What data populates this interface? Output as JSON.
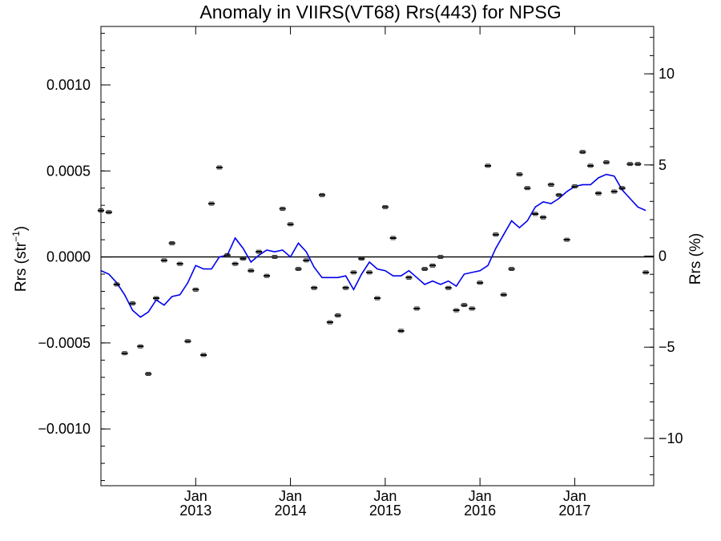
{
  "chart_data": {
    "type": "scatter",
    "title": "Anomaly in VIIRS(VT68) Rrs(443) for NPSG",
    "ylabel_left": "Rrs (str",
    "ylabel_left_sup": "−1",
    "ylabel_left_close": ")",
    "ylabel_right": "Rrs (%)",
    "x_start_date": "2012-01",
    "x_end_date": "2017-11",
    "ylim_left": [
      -0.00133,
      0.00134
    ],
    "ylim_right": [
      -12.6,
      12.6
    ],
    "x_ticks": [
      {
        "date": "2013-01",
        "month": "Jan",
        "year": "2013"
      },
      {
        "date": "2014-01",
        "month": "Jan",
        "year": "2014"
      },
      {
        "date": "2015-01",
        "month": "Jan",
        "year": "2015"
      },
      {
        "date": "2016-01",
        "month": "Jan",
        "year": "2016"
      },
      {
        "date": "2017-01",
        "month": "Jan",
        "year": "2017"
      }
    ],
    "y_ticks_left": [
      {
        "value": 0.001,
        "label": "0.0010"
      },
      {
        "value": 0.0005,
        "label": "0.0005"
      },
      {
        "value": 0.0,
        "label": "0.0000"
      },
      {
        "value": -0.0005,
        "label": "−0.0005"
      },
      {
        "value": -0.001,
        "label": "−0.0010"
      }
    ],
    "y_ticks_right": [
      {
        "value": 10,
        "label": "10"
      },
      {
        "value": 5,
        "label": "5"
      },
      {
        "value": 0,
        "label": "0"
      },
      {
        "value": -5,
        "label": "−5"
      },
      {
        "value": -10,
        "label": "−10"
      }
    ],
    "zero_line": 0.0,
    "grid": false,
    "series": [
      {
        "color": "#000000",
        "style": "points-with-errorbars",
        "points": [
          {
            "x": "2012-01",
            "y": 0.00027
          },
          {
            "x": "2012-02",
            "y": 0.00026
          },
          {
            "x": "2012-03",
            "y": -0.00016
          },
          {
            "x": "2012-04",
            "y": -0.00056
          },
          {
            "x": "2012-05",
            "y": -0.00027
          },
          {
            "x": "2012-06",
            "y": -0.00052
          },
          {
            "x": "2012-07",
            "y": -0.00068
          },
          {
            "x": "2012-08",
            "y": -0.00024
          },
          {
            "x": "2012-09",
            "y": -2e-05
          },
          {
            "x": "2012-10",
            "y": 8e-05
          },
          {
            "x": "2012-11",
            "y": -4e-05
          },
          {
            "x": "2012-12",
            "y": -0.00049
          },
          {
            "x": "2013-01",
            "y": -0.00019
          },
          {
            "x": "2013-02",
            "y": -0.00057
          },
          {
            "x": "2013-03",
            "y": 0.00031
          },
          {
            "x": "2013-04",
            "y": 0.00052
          },
          {
            "x": "2013-05",
            "y": 1e-05
          },
          {
            "x": "2013-06",
            "y": -4e-05
          },
          {
            "x": "2013-07",
            "y": -1e-05
          },
          {
            "x": "2013-08",
            "y": -8e-05
          },
          {
            "x": "2013-09",
            "y": 3e-05
          },
          {
            "x": "2013-10",
            "y": -0.00011
          },
          {
            "x": "2013-11",
            "y": 0.0
          },
          {
            "x": "2013-12",
            "y": 0.00028
          },
          {
            "x": "2014-01",
            "y": 0.00019
          },
          {
            "x": "2014-02",
            "y": -7e-05
          },
          {
            "x": "2014-03",
            "y": -2e-05
          },
          {
            "x": "2014-04",
            "y": -0.00018
          },
          {
            "x": "2014-05",
            "y": 0.00036
          },
          {
            "x": "2014-06",
            "y": -0.00038
          },
          {
            "x": "2014-07",
            "y": -0.00034
          },
          {
            "x": "2014-08",
            "y": -0.00018
          },
          {
            "x": "2014-09",
            "y": -9e-05
          },
          {
            "x": "2014-10",
            "y": -1e-05
          },
          {
            "x": "2014-11",
            "y": -9e-05
          },
          {
            "x": "2014-12",
            "y": -0.00024
          },
          {
            "x": "2015-01",
            "y": 0.00029
          },
          {
            "x": "2015-02",
            "y": 0.00011
          },
          {
            "x": "2015-03",
            "y": -0.00043
          },
          {
            "x": "2015-04",
            "y": -0.00012
          },
          {
            "x": "2015-05",
            "y": -0.0003
          },
          {
            "x": "2015-06",
            "y": -7e-05
          },
          {
            "x": "2015-07",
            "y": -5e-05
          },
          {
            "x": "2015-08",
            "y": 0.0
          },
          {
            "x": "2015-09",
            "y": -0.00018
          },
          {
            "x": "2015-10",
            "y": -0.00031
          },
          {
            "x": "2015-11",
            "y": -0.00028
          },
          {
            "x": "2015-12",
            "y": -0.0003
          },
          {
            "x": "2016-01",
            "y": -0.00015
          },
          {
            "x": "2016-02",
            "y": 0.00053
          },
          {
            "x": "2016-03",
            "y": 0.00013
          },
          {
            "x": "2016-04",
            "y": -0.00022
          },
          {
            "x": "2016-05",
            "y": -7e-05
          },
          {
            "x": "2016-06",
            "y": 0.00048
          },
          {
            "x": "2016-07",
            "y": 0.0004
          },
          {
            "x": "2016-08",
            "y": 0.00025
          },
          {
            "x": "2016-09",
            "y": 0.00023
          },
          {
            "x": "2016-10",
            "y": 0.00042
          },
          {
            "x": "2016-11",
            "y": 0.00036
          },
          {
            "x": "2016-12",
            "y": 0.0001
          },
          {
            "x": "2017-01",
            "y": 0.00041
          },
          {
            "x": "2017-02",
            "y": 0.00061
          },
          {
            "x": "2017-03",
            "y": 0.00053
          },
          {
            "x": "2017-04",
            "y": 0.00037
          },
          {
            "x": "2017-05",
            "y": 0.00055
          },
          {
            "x": "2017-06",
            "y": 0.00038
          },
          {
            "x": "2017-07",
            "y": 0.0004
          },
          {
            "x": "2017-08",
            "y": 0.00054
          },
          {
            "x": "2017-09",
            "y": 0.00054
          },
          {
            "x": "2017-10",
            "y": -9e-05
          }
        ]
      },
      {
        "color": "#0000ee",
        "style": "line",
        "points": [
          {
            "x": "2012-01",
            "y": -8e-05
          },
          {
            "x": "2012-02",
            "y": -0.0001
          },
          {
            "x": "2012-03",
            "y": -0.00015
          },
          {
            "x": "2012-04",
            "y": -0.00022
          },
          {
            "x": "2012-05",
            "y": -0.00031
          },
          {
            "x": "2012-06",
            "y": -0.00035
          },
          {
            "x": "2012-07",
            "y": -0.00032
          },
          {
            "x": "2012-08",
            "y": -0.00025
          },
          {
            "x": "2012-09",
            "y": -0.00028
          },
          {
            "x": "2012-10",
            "y": -0.00023
          },
          {
            "x": "2012-11",
            "y": -0.00022
          },
          {
            "x": "2012-12",
            "y": -0.00015
          },
          {
            "x": "2013-01",
            "y": -5e-05
          },
          {
            "x": "2013-02",
            "y": -7e-05
          },
          {
            "x": "2013-03",
            "y": -7e-05
          },
          {
            "x": "2013-04",
            "y": 0.0
          },
          {
            "x": "2013-05",
            "y": 1e-05
          },
          {
            "x": "2013-06",
            "y": 0.00011
          },
          {
            "x": "2013-07",
            "y": 5e-05
          },
          {
            "x": "2013-08",
            "y": -3e-05
          },
          {
            "x": "2013-09",
            "y": 1e-05
          },
          {
            "x": "2013-10",
            "y": 4e-05
          },
          {
            "x": "2013-11",
            "y": 3e-05
          },
          {
            "x": "2013-12",
            "y": 4e-05
          },
          {
            "x": "2014-01",
            "y": 0.0
          },
          {
            "x": "2014-02",
            "y": 8e-05
          },
          {
            "x": "2014-03",
            "y": 3e-05
          },
          {
            "x": "2014-04",
            "y": -6e-05
          },
          {
            "x": "2014-05",
            "y": -0.00012
          },
          {
            "x": "2014-06",
            "y": -0.00012
          },
          {
            "x": "2014-07",
            "y": -0.00012
          },
          {
            "x": "2014-08",
            "y": -0.00011
          },
          {
            "x": "2014-09",
            "y": -0.00019
          },
          {
            "x": "2014-10",
            "y": -0.0001
          },
          {
            "x": "2014-11",
            "y": -3e-05
          },
          {
            "x": "2014-12",
            "y": -7e-05
          },
          {
            "x": "2015-01",
            "y": -8e-05
          },
          {
            "x": "2015-02",
            "y": -0.00011
          },
          {
            "x": "2015-03",
            "y": -0.00011
          },
          {
            "x": "2015-04",
            "y": -8e-05
          },
          {
            "x": "2015-05",
            "y": -0.00012
          },
          {
            "x": "2015-06",
            "y": -0.00016
          },
          {
            "x": "2015-07",
            "y": -0.00014
          },
          {
            "x": "2015-08",
            "y": -0.00016
          },
          {
            "x": "2015-09",
            "y": -0.00014
          },
          {
            "x": "2015-10",
            "y": -0.00017
          },
          {
            "x": "2015-11",
            "y": -0.0001
          },
          {
            "x": "2015-12",
            "y": -9e-05
          },
          {
            "x": "2016-01",
            "y": -8e-05
          },
          {
            "x": "2016-02",
            "y": -5e-05
          },
          {
            "x": "2016-03",
            "y": 5e-05
          },
          {
            "x": "2016-04",
            "y": 0.00013
          },
          {
            "x": "2016-05",
            "y": 0.00021
          },
          {
            "x": "2016-06",
            "y": 0.00017
          },
          {
            "x": "2016-07",
            "y": 0.00021
          },
          {
            "x": "2016-08",
            "y": 0.00029
          },
          {
            "x": "2016-09",
            "y": 0.00032
          },
          {
            "x": "2016-10",
            "y": 0.00031
          },
          {
            "x": "2016-11",
            "y": 0.00034
          },
          {
            "x": "2016-12",
            "y": 0.00038
          },
          {
            "x": "2017-01",
            "y": 0.00041
          },
          {
            "x": "2017-02",
            "y": 0.00042
          },
          {
            "x": "2017-03",
            "y": 0.00042
          },
          {
            "x": "2017-04",
            "y": 0.00046
          },
          {
            "x": "2017-05",
            "y": 0.00048
          },
          {
            "x": "2017-06",
            "y": 0.00047
          },
          {
            "x": "2017-07",
            "y": 0.00039
          },
          {
            "x": "2017-08",
            "y": 0.00034
          },
          {
            "x": "2017-09",
            "y": 0.00029
          },
          {
            "x": "2017-10",
            "y": 0.00027
          }
        ]
      }
    ]
  }
}
